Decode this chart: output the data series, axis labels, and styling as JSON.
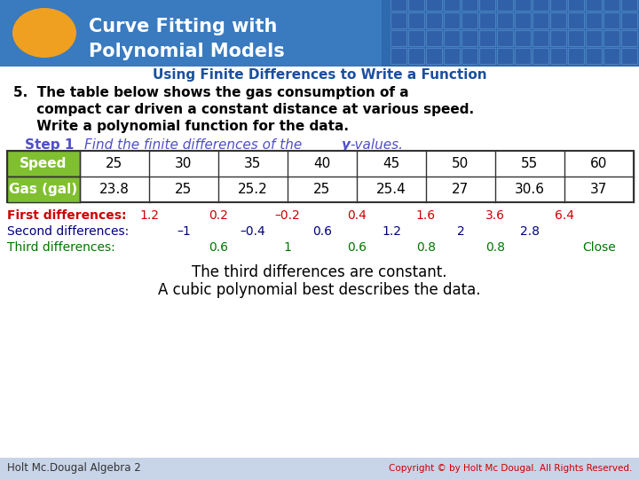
{
  "title_line1": "Curve Fitting with",
  "title_line2": "Polynomial Models",
  "subtitle": "Using Finite Differences to Write a Function",
  "speed_label": "Speed",
  "gas_label": "Gas (gal)",
  "speed_values": [
    "25",
    "30",
    "35",
    "40",
    "45",
    "50",
    "55",
    "60"
  ],
  "gas_values": [
    "23.8",
    "25",
    "25.2",
    "25",
    "25.4",
    "27",
    "30.6",
    "37"
  ],
  "first_diff_label": "First differences:",
  "first_vals": [
    "1.2",
    "0.2",
    "–0.2",
    "0.4",
    "1.6",
    "3.6",
    "6.4"
  ],
  "second_diff_label": "Second differences:",
  "second_vals": [
    "–1",
    "–0.4",
    "0.6",
    "1.2",
    "2",
    "2.8"
  ],
  "third_diff_label": "Third differences:",
  "third_vals": [
    "0.6",
    "1",
    "0.6",
    "0.8",
    "0.8",
    "Close"
  ],
  "conclusion1": "The third differences are constant.",
  "conclusion2": "A cubic polynomial best describes the data.",
  "footer_left": "Holt Mc.Dougal Algebra 2",
  "footer_right": "Copyright © by Holt Mc Dougal. All Rights Reserved.",
  "header_bg": "#3a7abf",
  "header_right_bg": "#2d6aae",
  "oval_color": "#f0a020",
  "title_color": "#ffffff",
  "subtitle_color": "#1a4fa0",
  "step1_color": "#5050c8",
  "first_diff_color": "#cc0000",
  "second_diff_color": "#000080",
  "third_diff_color": "#007700",
  "table_header_bg": "#80c030",
  "table_border_color": "#333333",
  "body_bg": "#ffffff",
  "footer_bg": "#c8d4e8",
  "problem_text_color": "#000000",
  "grid_color": "#4a80c0",
  "grid_fill": "#3060a8"
}
